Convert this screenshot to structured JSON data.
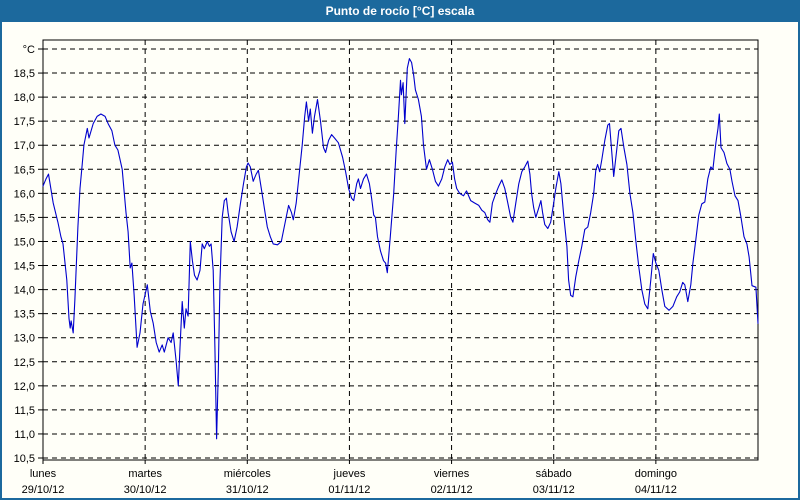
{
  "window": {
    "title": "Punto de rocío [°C] escala",
    "title_bar_color": "#1C699D",
    "border_color": "#1C699D",
    "background_color": "#FFFFF8"
  },
  "chart_data": {
    "type": "line",
    "title": "Punto de rocío [°C] escala",
    "unit_label": "°C",
    "ylim": [
      10.5,
      19.0
    ],
    "ytick_step": 0.5,
    "ytick_label_min": "10,5",
    "ytick_label_max": "18,5",
    "decimal_separator": ",",
    "grid": true,
    "legend": "none",
    "line_color": "#0000CD",
    "grid_color": "#000000",
    "x_total_hours": 168,
    "x_axis_days": [
      {
        "label": "lunes",
        "date": "29/10/12"
      },
      {
        "label": "martes",
        "date": "30/10/12"
      },
      {
        "label": "miércoles",
        "date": "31/10/12"
      },
      {
        "label": "jueves",
        "date": "01/11/12"
      },
      {
        "label": "viernes",
        "date": "02/11/12"
      },
      {
        "label": "sábado",
        "date": "03/11/12"
      },
      {
        "label": "domingo",
        "date": "04/11/12"
      }
    ],
    "series": [
      {
        "name": "Punto de rocío [°C]",
        "points": [
          [
            0,
            16.15
          ],
          [
            0.7,
            16.3
          ],
          [
            1.3,
            16.4
          ],
          [
            2.4,
            15.8
          ],
          [
            3.5,
            15.4
          ],
          [
            4.2,
            15.1
          ],
          [
            4.7,
            14.95
          ],
          [
            5.6,
            14.2
          ],
          [
            6.1,
            13.4
          ],
          [
            6.4,
            13.2
          ],
          [
            6.6,
            13.35
          ],
          [
            7.1,
            13.1
          ],
          [
            7.5,
            13.8
          ],
          [
            8.2,
            15.3
          ],
          [
            8.7,
            16.1
          ],
          [
            9.2,
            16.6
          ],
          [
            9.6,
            17.0
          ],
          [
            10.4,
            17.35
          ],
          [
            10.8,
            17.15
          ],
          [
            11.8,
            17.45
          ],
          [
            12.7,
            17.6
          ],
          [
            13.6,
            17.65
          ],
          [
            14.6,
            17.6
          ],
          [
            15.3,
            17.45
          ],
          [
            16.2,
            17.3
          ],
          [
            16.9,
            17.0
          ],
          [
            17.6,
            16.9
          ],
          [
            18.6,
            16.5
          ],
          [
            19.1,
            16.0
          ],
          [
            19.5,
            15.6
          ],
          [
            20.0,
            15.2
          ],
          [
            20.5,
            14.45
          ],
          [
            20.9,
            14.55
          ],
          [
            21.4,
            13.9
          ],
          [
            22.1,
            12.8
          ],
          [
            22.8,
            13.1
          ],
          [
            23.5,
            13.7
          ],
          [
            24.5,
            14.1
          ],
          [
            25.2,
            13.55
          ],
          [
            25.9,
            13.3
          ],
          [
            26.6,
            12.9
          ],
          [
            27.3,
            12.7
          ],
          [
            28.0,
            12.85
          ],
          [
            28.5,
            12.7
          ],
          [
            29.4,
            13.0
          ],
          [
            30.1,
            12.9
          ],
          [
            30.6,
            13.1
          ],
          [
            31.3,
            12.5
          ],
          [
            31.8,
            12.0
          ],
          [
            32.2,
            12.8
          ],
          [
            32.7,
            13.75
          ],
          [
            33.2,
            13.2
          ],
          [
            33.6,
            13.6
          ],
          [
            34.1,
            13.45
          ],
          [
            34.6,
            15.0
          ],
          [
            35.1,
            14.6
          ],
          [
            35.6,
            14.3
          ],
          [
            36.2,
            14.2
          ],
          [
            36.9,
            14.4
          ],
          [
            37.4,
            14.95
          ],
          [
            37.9,
            14.85
          ],
          [
            38.6,
            15.0
          ],
          [
            39.1,
            14.9
          ],
          [
            39.5,
            14.95
          ],
          [
            40.0,
            14.4
          ],
          [
            40.4,
            12.8
          ],
          [
            40.8,
            10.9
          ],
          [
            41.2,
            12.3
          ],
          [
            41.6,
            14.2
          ],
          [
            42.1,
            15.5
          ],
          [
            42.6,
            15.85
          ],
          [
            43.1,
            15.9
          ],
          [
            43.5,
            15.6
          ],
          [
            44.2,
            15.2
          ],
          [
            44.9,
            15.0
          ],
          [
            45.6,
            15.3
          ],
          [
            46.4,
            15.8
          ],
          [
            47.1,
            16.2
          ],
          [
            47.8,
            16.55
          ],
          [
            48.2,
            16.63
          ],
          [
            48.7,
            16.55
          ],
          [
            49.4,
            16.25
          ],
          [
            50.1,
            16.4
          ],
          [
            50.6,
            16.48
          ],
          [
            51.3,
            16.1
          ],
          [
            52.0,
            15.7
          ],
          [
            52.7,
            15.3
          ],
          [
            53.4,
            15.1
          ],
          [
            54.1,
            14.95
          ],
          [
            55.1,
            14.93
          ],
          [
            56.0,
            15.0
          ],
          [
            56.9,
            15.4
          ],
          [
            57.7,
            15.75
          ],
          [
            58.4,
            15.6
          ],
          [
            58.8,
            15.45
          ],
          [
            59.5,
            15.8
          ],
          [
            60.2,
            16.4
          ],
          [
            60.9,
            17.0
          ],
          [
            61.5,
            17.6
          ],
          [
            61.9,
            17.9
          ],
          [
            62.4,
            17.5
          ],
          [
            62.8,
            17.75
          ],
          [
            63.3,
            17.25
          ],
          [
            63.8,
            17.6
          ],
          [
            64.5,
            17.95
          ],
          [
            65.2,
            17.5
          ],
          [
            65.9,
            16.95
          ],
          [
            66.4,
            16.85
          ],
          [
            67.1,
            17.1
          ],
          [
            67.8,
            17.22
          ],
          [
            68.5,
            17.15
          ],
          [
            69.4,
            17.05
          ],
          [
            70.4,
            16.75
          ],
          [
            71.1,
            16.45
          ],
          [
            71.8,
            16.1
          ],
          [
            72.5,
            15.9
          ],
          [
            73.0,
            15.85
          ],
          [
            73.7,
            16.2
          ],
          [
            74.1,
            16.3
          ],
          [
            74.6,
            16.1
          ],
          [
            75.3,
            16.3
          ],
          [
            76.0,
            16.4
          ],
          [
            76.7,
            16.2
          ],
          [
            77.2,
            15.9
          ],
          [
            77.7,
            15.55
          ],
          [
            78.1,
            15.5
          ],
          [
            78.6,
            15.1
          ],
          [
            79.3,
            14.8
          ],
          [
            80.0,
            14.6
          ],
          [
            80.5,
            14.55
          ],
          [
            80.9,
            14.35
          ],
          [
            81.6,
            15.1
          ],
          [
            82.4,
            16.0
          ],
          [
            83.0,
            16.9
          ],
          [
            83.5,
            17.6
          ],
          [
            84.0,
            18.35
          ],
          [
            84.2,
            18.05
          ],
          [
            84.6,
            18.3
          ],
          [
            85.0,
            17.45
          ],
          [
            85.6,
            18.6
          ],
          [
            86.1,
            18.8
          ],
          [
            86.6,
            18.72
          ],
          [
            87.1,
            18.45
          ],
          [
            87.5,
            18.15
          ],
          [
            88.2,
            17.95
          ],
          [
            88.9,
            17.6
          ],
          [
            89.4,
            17.0
          ],
          [
            90.1,
            16.5
          ],
          [
            90.8,
            16.7
          ],
          [
            91.5,
            16.5
          ],
          [
            92.2,
            16.25
          ],
          [
            92.9,
            16.15
          ],
          [
            93.7,
            16.3
          ],
          [
            94.4,
            16.55
          ],
          [
            95.1,
            16.7
          ],
          [
            95.6,
            16.6
          ],
          [
            96.2,
            16.65
          ],
          [
            96.7,
            16.3
          ],
          [
            97.2,
            16.1
          ],
          [
            97.9,
            16.0
          ],
          [
            98.8,
            15.95
          ],
          [
            99.5,
            16.05
          ],
          [
            100.5,
            15.85
          ],
          [
            101.4,
            15.8
          ],
          [
            102.4,
            15.75
          ],
          [
            103.1,
            15.65
          ],
          [
            103.8,
            15.6
          ],
          [
            104.5,
            15.45
          ],
          [
            105.0,
            15.4
          ],
          [
            105.6,
            15.8
          ],
          [
            106.4,
            16.0
          ],
          [
            107.1,
            16.15
          ],
          [
            107.8,
            16.28
          ],
          [
            108.5,
            16.1
          ],
          [
            109.2,
            15.8
          ],
          [
            109.9,
            15.5
          ],
          [
            110.4,
            15.4
          ],
          [
            111.1,
            15.8
          ],
          [
            111.8,
            16.2
          ],
          [
            112.5,
            16.45
          ],
          [
            113.2,
            16.55
          ],
          [
            113.9,
            16.67
          ],
          [
            114.4,
            16.4
          ],
          [
            114.8,
            16.0
          ],
          [
            115.3,
            15.7
          ],
          [
            115.8,
            15.5
          ],
          [
            116.5,
            15.7
          ],
          [
            117.0,
            15.85
          ],
          [
            117.4,
            15.6
          ],
          [
            117.9,
            15.35
          ],
          [
            118.6,
            15.27
          ],
          [
            119.3,
            15.4
          ],
          [
            120.0,
            15.8
          ],
          [
            120.5,
            16.1
          ],
          [
            121.2,
            16.45
          ],
          [
            121.7,
            16.2
          ],
          [
            122.4,
            15.5
          ],
          [
            123.1,
            14.9
          ],
          [
            123.5,
            14.2
          ],
          [
            124.0,
            13.88
          ],
          [
            124.5,
            13.85
          ],
          [
            125.2,
            14.27
          ],
          [
            125.9,
            14.6
          ],
          [
            126.6,
            14.9
          ],
          [
            127.3,
            15.25
          ],
          [
            128.0,
            15.3
          ],
          [
            128.7,
            15.6
          ],
          [
            129.4,
            16.0
          ],
          [
            129.9,
            16.48
          ],
          [
            130.3,
            16.6
          ],
          [
            130.8,
            16.45
          ],
          [
            131.3,
            16.7
          ],
          [
            132.0,
            17.1
          ],
          [
            132.7,
            17.42
          ],
          [
            133.1,
            17.45
          ],
          [
            133.6,
            16.9
          ],
          [
            134.1,
            16.35
          ],
          [
            134.8,
            16.9
          ],
          [
            135.3,
            17.3
          ],
          [
            135.8,
            17.35
          ],
          [
            136.5,
            16.95
          ],
          [
            137.2,
            16.6
          ],
          [
            137.9,
            16.0
          ],
          [
            138.6,
            15.6
          ],
          [
            139.3,
            15.0
          ],
          [
            140.0,
            14.47
          ],
          [
            140.7,
            14.0
          ],
          [
            141.4,
            13.7
          ],
          [
            142.1,
            13.6
          ],
          [
            142.8,
            14.2
          ],
          [
            143.4,
            14.75
          ],
          [
            144.0,
            14.55
          ],
          [
            144.7,
            14.4
          ],
          [
            145.4,
            14.0
          ],
          [
            146.1,
            13.65
          ],
          [
            147.1,
            13.57
          ],
          [
            148.0,
            13.65
          ],
          [
            148.9,
            13.85
          ],
          [
            149.6,
            13.95
          ],
          [
            150.3,
            14.15
          ],
          [
            150.8,
            14.1
          ],
          [
            151.5,
            13.75
          ],
          [
            152.2,
            14.1
          ],
          [
            152.7,
            14.55
          ],
          [
            153.4,
            15.05
          ],
          [
            154.1,
            15.55
          ],
          [
            154.8,
            15.78
          ],
          [
            155.5,
            15.82
          ],
          [
            156.2,
            16.3
          ],
          [
            156.9,
            16.55
          ],
          [
            157.4,
            16.5
          ],
          [
            158.1,
            17.05
          ],
          [
            158.6,
            17.35
          ],
          [
            158.9,
            17.65
          ],
          [
            159.3,
            16.95
          ],
          [
            160.0,
            16.85
          ],
          [
            160.7,
            16.62
          ],
          [
            161.4,
            16.5
          ],
          [
            161.9,
            16.25
          ],
          [
            162.6,
            15.95
          ],
          [
            163.3,
            15.85
          ],
          [
            164.0,
            15.5
          ],
          [
            164.7,
            15.1
          ],
          [
            165.4,
            14.95
          ],
          [
            165.9,
            14.68
          ],
          [
            166.6,
            14.08
          ],
          [
            167.5,
            14.05
          ],
          [
            168.0,
            13.3
          ]
        ]
      }
    ]
  }
}
